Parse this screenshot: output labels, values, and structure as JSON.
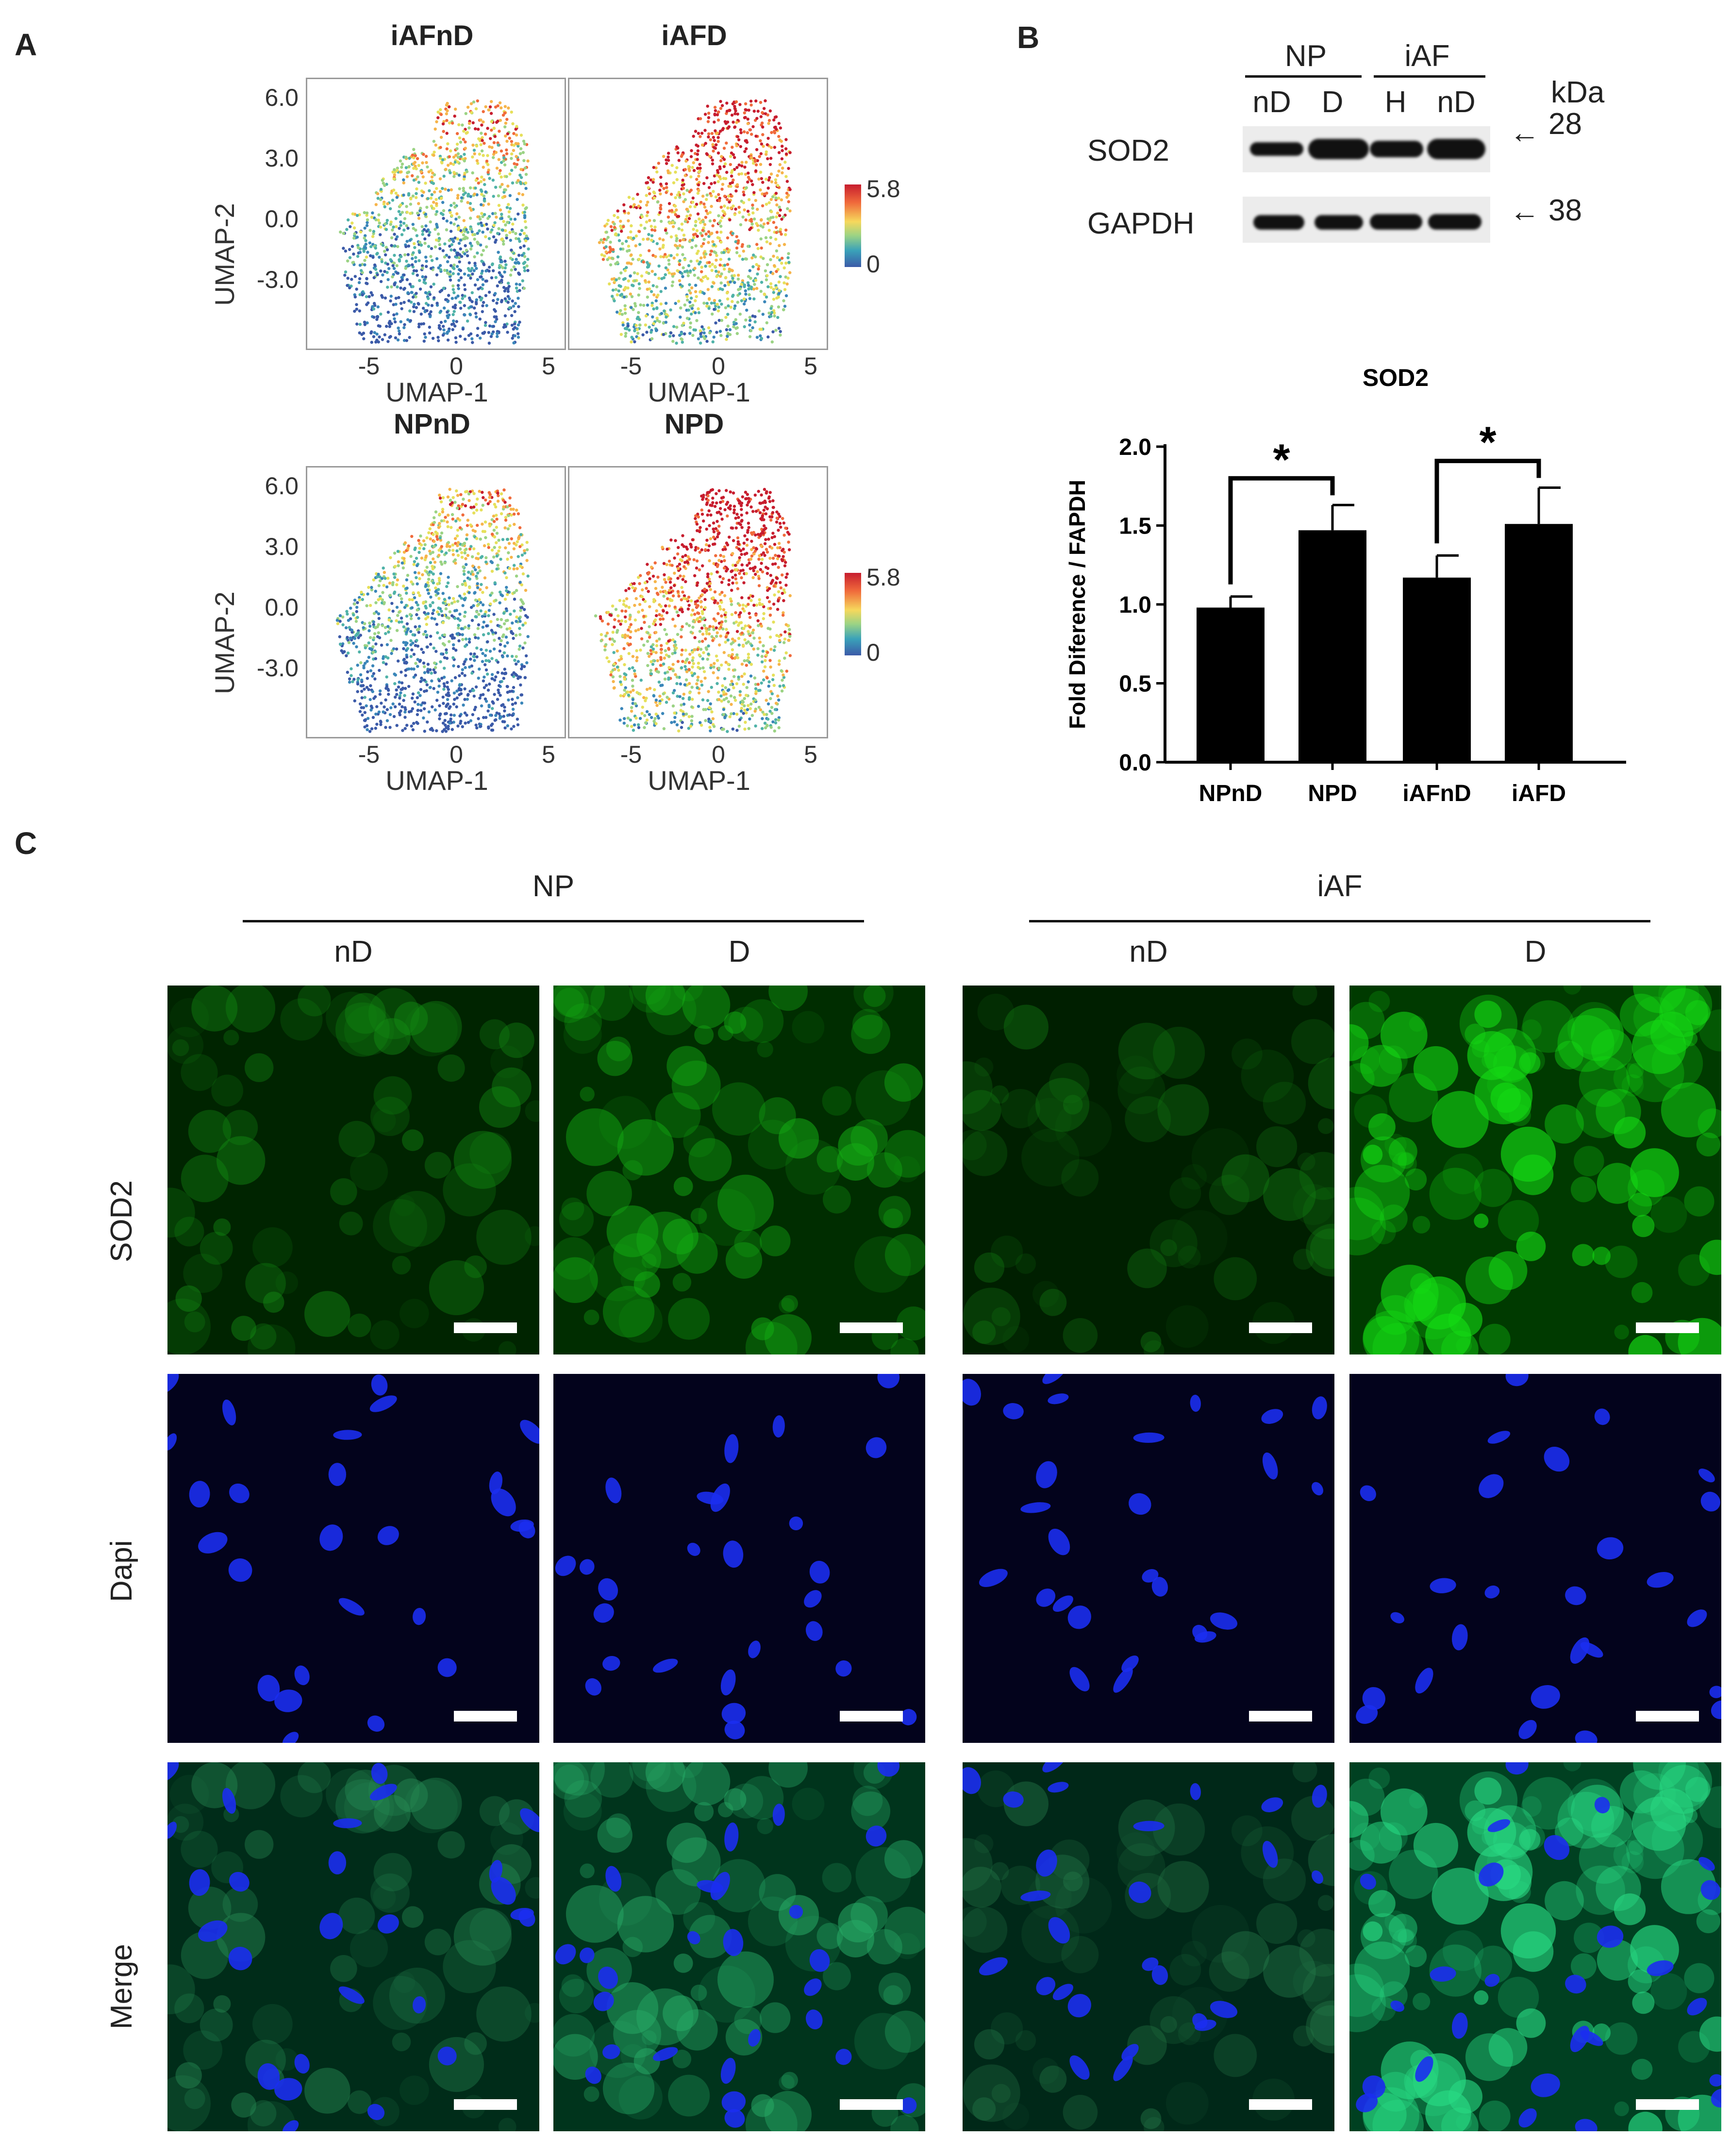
{
  "panels": {
    "a": "A",
    "b": "B",
    "c": "C"
  },
  "umap": {
    "plots": [
      {
        "title": "iAFnD",
        "level": 0.35
      },
      {
        "title": "iAFD",
        "level": 0.7
      },
      {
        "title": "NPnD",
        "level": 0.3
      },
      {
        "title": "NPD",
        "level": 0.78
      }
    ],
    "xlabel": "UMAP-1",
    "ylabel": "UMAP-2",
    "xticks": [
      "-5",
      "0",
      "5"
    ],
    "yticks": [
      "6.0",
      "3.0",
      "0.0",
      "-3.0"
    ],
    "colorbar": {
      "max": "5.8",
      "min": "0"
    }
  },
  "western": {
    "group_left": "NP",
    "group_right": "iAF",
    "lanes": [
      "nD",
      "D",
      "H",
      "nD"
    ],
    "unit": "kDa",
    "rows": [
      {
        "protein": "SOD2",
        "marker": "28"
      },
      {
        "protein": "GAPDH",
        "marker": "38"
      }
    ]
  },
  "chart_data": {
    "type": "bar",
    "title": "SOD2",
    "categories": [
      "NPnD",
      "NPD",
      "iAFnD",
      "iAFD"
    ],
    "values": [
      0.98,
      1.47,
      1.17,
      1.51
    ],
    "errors": [
      0.07,
      0.16,
      0.14,
      0.23
    ],
    "ylabel": "Fold Diference / FAPDH",
    "xlabel": "",
    "ylim": [
      0,
      2.0
    ],
    "yticks": [
      "0.0",
      "0.5",
      "1.0",
      "1.5",
      "2.0"
    ],
    "significance": [
      {
        "from": "NPnD",
        "to": "NPD",
        "label": "*"
      },
      {
        "from": "iAFnD",
        "to": "iAFD",
        "label": "*"
      }
    ],
    "grid": false,
    "legend": "none"
  },
  "microscopy": {
    "groups": [
      "NP",
      "iAF"
    ],
    "columns": [
      "nD",
      "D",
      "nD",
      "D"
    ],
    "rows": [
      "SOD2",
      "Dapi",
      "Merge"
    ],
    "green_intensity": [
      0.35,
      0.55,
      0.25,
      0.85
    ]
  }
}
